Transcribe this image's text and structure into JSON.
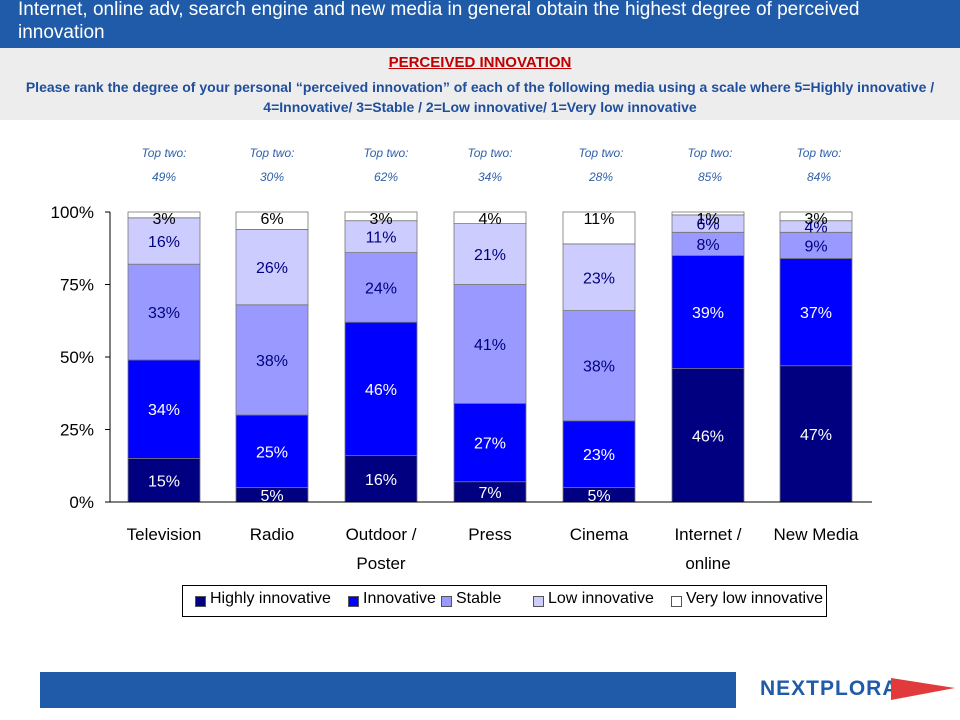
{
  "title": "Internet, online adv, search engine and new media in general obtain the highest degree of perceived innovation",
  "section_title": "PERCEIVED INNOVATION",
  "question": "Please rank the degree of your personal “perceived innovation” of each of the following media using a scale where  5=Highly innovative / 4=Innovative/ 3=Stable / 2=Low innovative/ 1=Very low innovative",
  "top_two": [
    {
      "label": "Top two:",
      "value": "49%"
    },
    {
      "label": "Top two:",
      "value": "30%"
    },
    {
      "label": "Top two:",
      "value": "62%"
    },
    {
      "label": "Top two:",
      "value": "34%"
    },
    {
      "label": "Top two:",
      "value": "28%"
    },
    {
      "label": "Top two:",
      "value": "85%"
    },
    {
      "label": "Top two:",
      "value": "84%"
    }
  ],
  "chart_data": {
    "type": "bar",
    "stacked": true,
    "categories": [
      "Television",
      "Radio",
      "Outdoor / Poster",
      "Press",
      "Cinema",
      "Internet / online",
      "New Media"
    ],
    "category_lines": [
      [
        "Television"
      ],
      [
        "Radio"
      ],
      [
        "Outdoor /",
        "Poster"
      ],
      [
        "Press"
      ],
      [
        "Cinema"
      ],
      [
        "Internet /",
        "online"
      ],
      [
        "New Media"
      ]
    ],
    "series": [
      {
        "name": "Highly innovative",
        "values": [
          15,
          5,
          16,
          7,
          5,
          46,
          47
        ],
        "labels": [
          "15%",
          "5%",
          "16%",
          "7%",
          "5%",
          "46%",
          "47%"
        ],
        "color": "#000080",
        "text_color": "#ffffff"
      },
      {
        "name": "Innovative",
        "values": [
          34,
          25,
          46,
          27,
          23,
          39,
          37
        ],
        "labels": [
          "34%",
          "25%",
          "46%",
          "27%",
          "23%",
          "39%",
          "37%"
        ],
        "color": "#0000FF",
        "text_color": "#ffffff"
      },
      {
        "name": "Stable",
        "values": [
          33,
          38,
          24,
          41,
          38,
          8,
          9
        ],
        "labels": [
          "33%",
          "38%",
          "24%",
          "41%",
          "38%",
          "8%",
          "9%"
        ],
        "color": "#9999FF",
        "text_color": "#000080"
      },
      {
        "name": "Low innovative",
        "values": [
          16,
          26,
          11,
          21,
          23,
          6,
          4
        ],
        "labels": [
          "16%",
          "26%",
          "11%",
          "21%",
          "23%",
          "6%",
          "4%"
        ],
        "color": "#CCCCFF",
        "text_color": "#000080"
      },
      {
        "name": "Very low innovative",
        "values": [
          3,
          6,
          3,
          4,
          11,
          1,
          3
        ],
        "labels": [
          "3%",
          "6%",
          "3%",
          "4%",
          "11%",
          "1%",
          "3%"
        ],
        "color": "#FFFFFF",
        "text_color": "#000000"
      }
    ],
    "y_ticks": [
      "0%",
      "25%",
      "50%",
      "75%",
      "100%"
    ],
    "ylim": [
      0,
      100
    ],
    "legend_position": "bottom",
    "grid": false
  },
  "footer": {
    "logo": "NEXTPLORA"
  }
}
